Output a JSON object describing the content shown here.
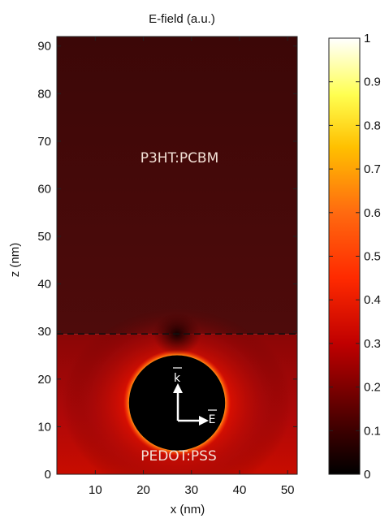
{
  "chart_data": {
    "type": "heatmap",
    "title": "E-field (a.u.)",
    "xlabel": "x (nm)",
    "ylabel": "z (nm)",
    "xlim": [
      2,
      52
    ],
    "ylim": [
      0,
      92
    ],
    "x_ticks": [
      "10",
      "20",
      "30",
      "40",
      "50"
    ],
    "x_tick_values": [
      10,
      20,
      30,
      40,
      50
    ],
    "y_ticks": [
      "0",
      "10",
      "20",
      "30",
      "40",
      "50",
      "60",
      "70",
      "80",
      "90"
    ],
    "y_tick_values": [
      0,
      10,
      20,
      30,
      40,
      50,
      60,
      70,
      80,
      90
    ],
    "colorbar": {
      "min": 0,
      "max": 1,
      "ticks": [
        "0",
        "0.1",
        "0.2",
        "0.3",
        "0.4",
        "0.5",
        "0.6",
        "0.7",
        "0.8",
        "0.9",
        "1"
      ],
      "tick_values": [
        0,
        0.1,
        0.2,
        0.3,
        0.4,
        0.5,
        0.6,
        0.7,
        0.8,
        0.9,
        1
      ],
      "colormap": "hot"
    },
    "interface_z": 29.5,
    "particle": {
      "center_x": 27,
      "center_z": 15,
      "radius": 10
    },
    "annotations": {
      "top_region": "P3HT:PCBM",
      "bottom_region": "PEDOT:PSS",
      "k_vector": "k",
      "e_vector": "E"
    },
    "field_levels": {
      "top_region": 0.08,
      "interface_layer": 0.16,
      "particle_rim": 0.95,
      "particle_interior": 0.0
    }
  }
}
